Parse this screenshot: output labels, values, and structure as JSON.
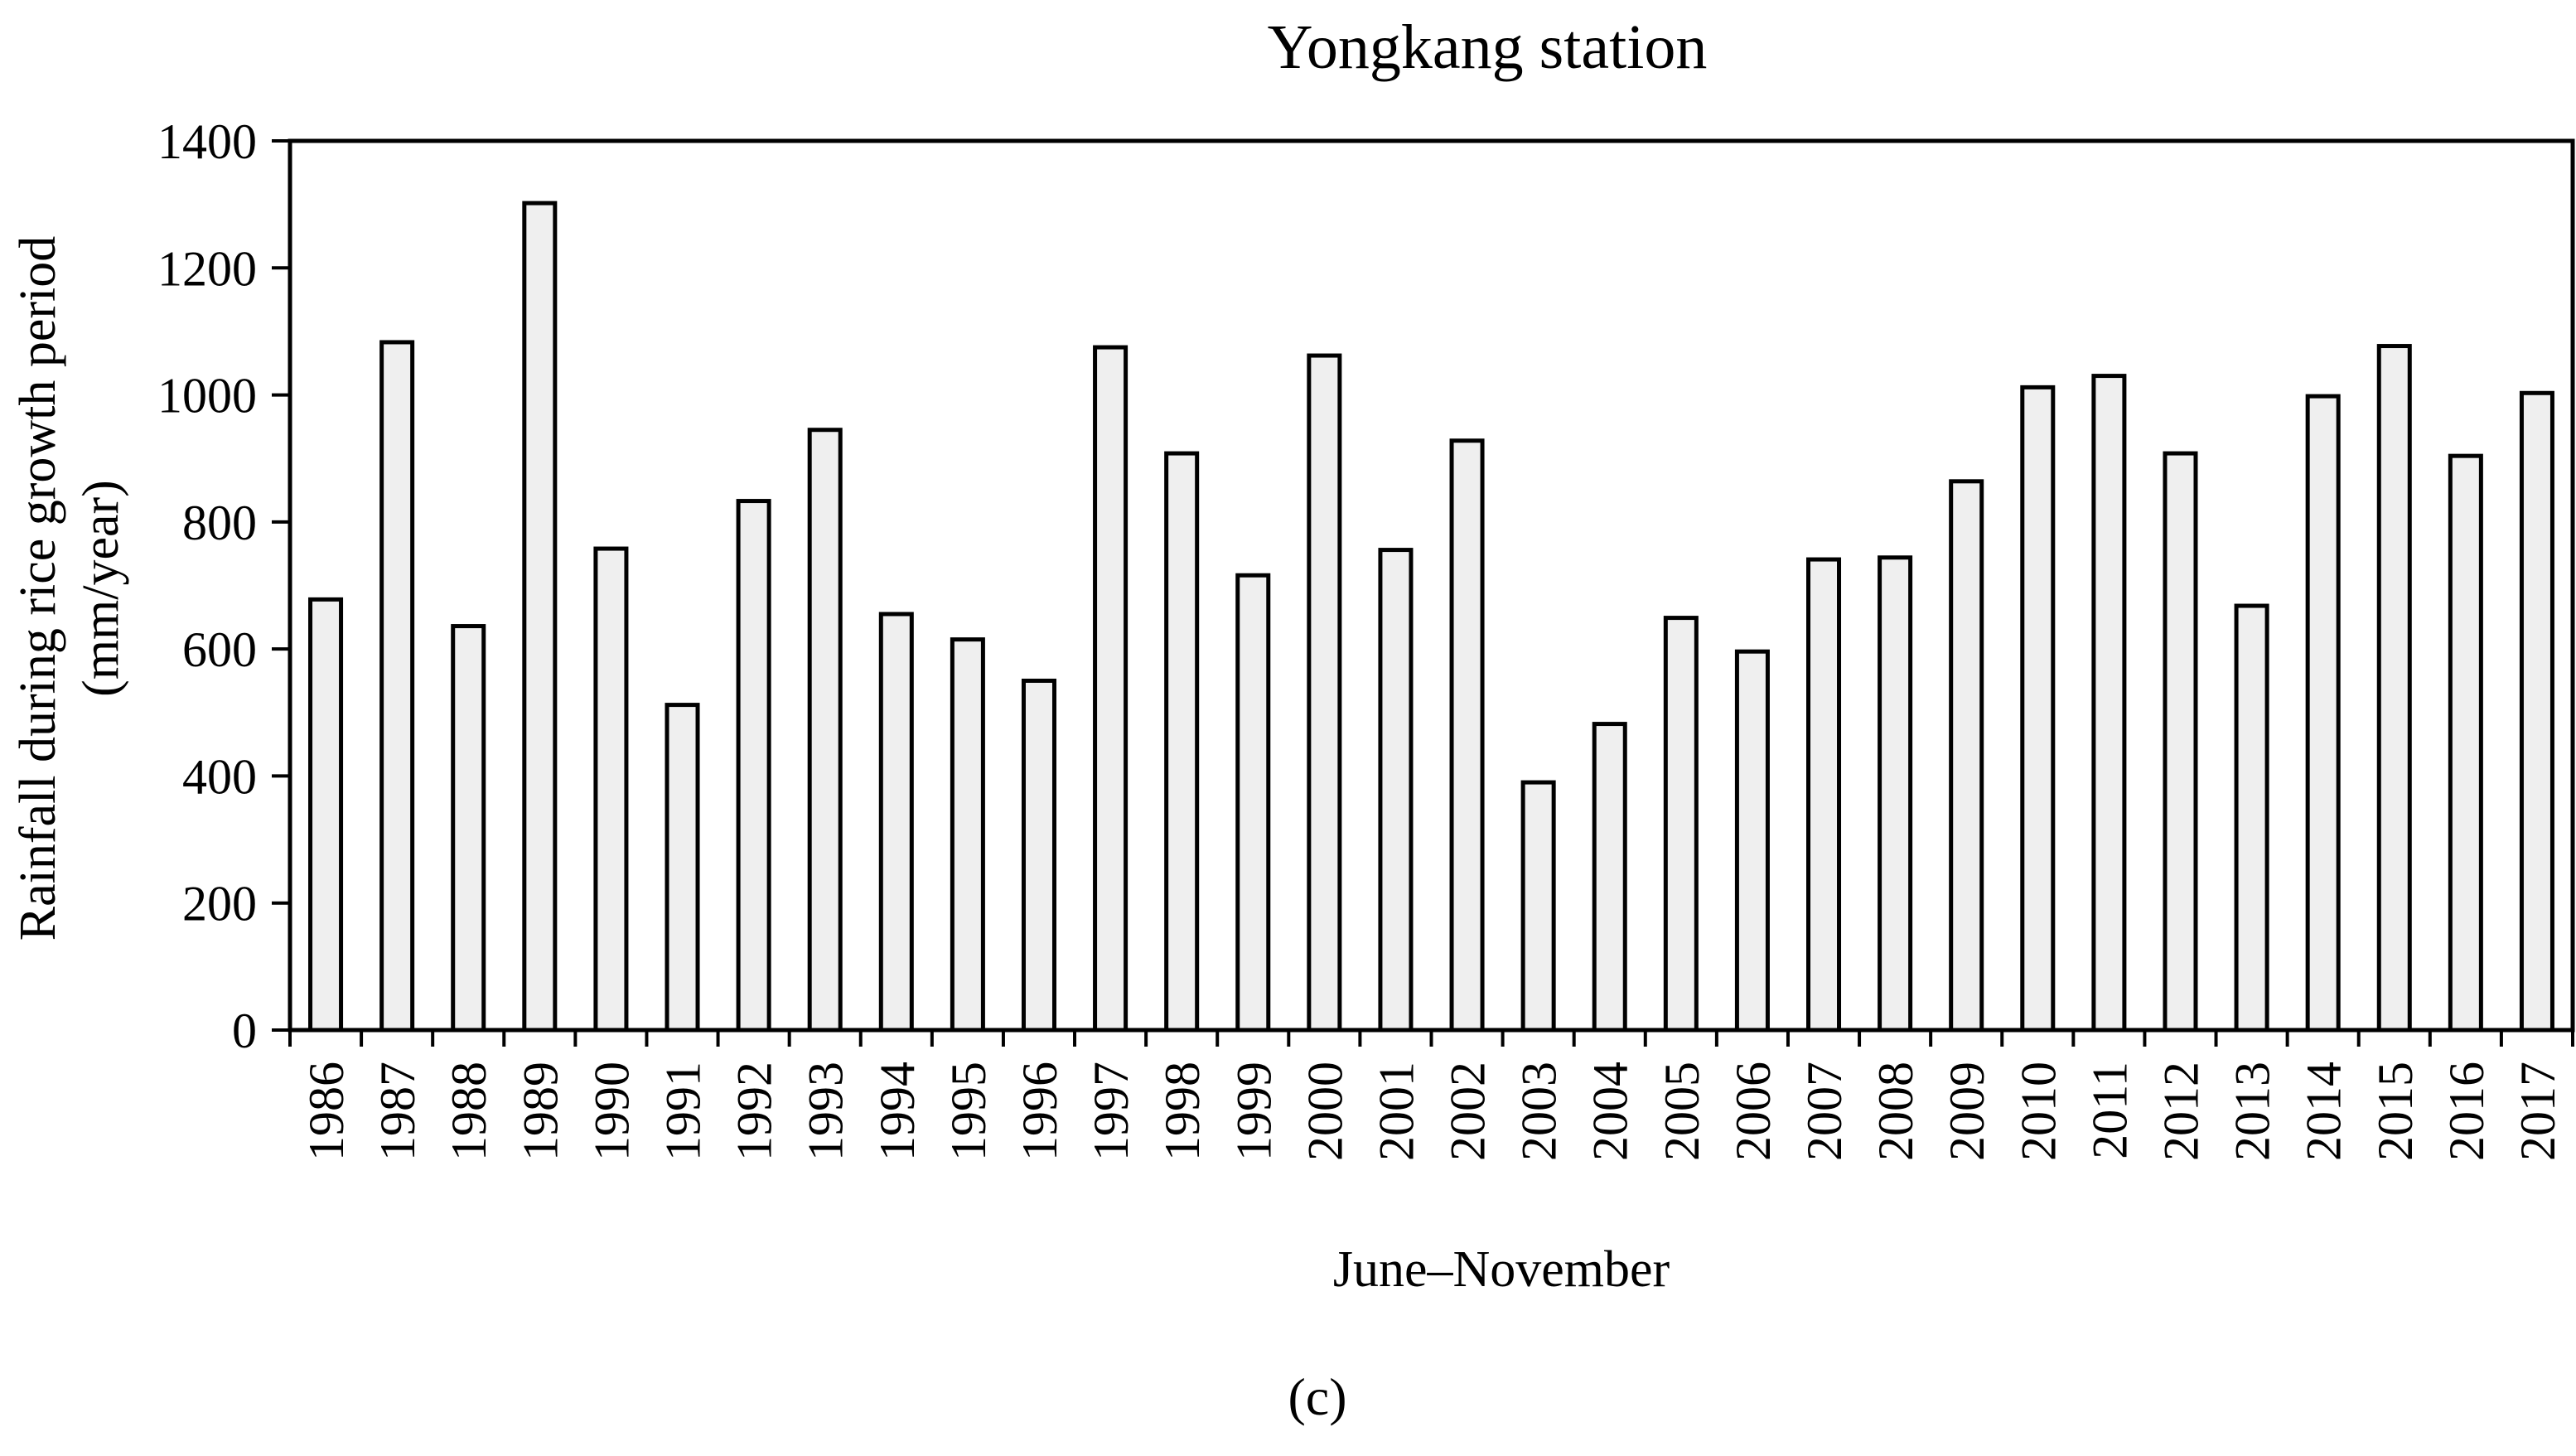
{
  "chart_data": {
    "type": "bar",
    "title": "Yongkang station",
    "xlabel": "June–November",
    "ylabel_lines": [
      "Rainfall during rice growth period",
      "(mm/year)"
    ],
    "panel_label": "(c)",
    "ylim": [
      0,
      1400
    ],
    "yticks": [
      0,
      200,
      400,
      600,
      800,
      1000,
      1200,
      1400
    ],
    "grid": false,
    "legend": "none",
    "bar_fill": "#efefef",
    "bar_stroke": "#000000",
    "categories": [
      "1986",
      "1987",
      "1988",
      "1989",
      "1990",
      "1991",
      "1992",
      "1993",
      "1994",
      "1995",
      "1996",
      "1997",
      "1998",
      "1999",
      "2000",
      "2001",
      "2002",
      "2003",
      "2004",
      "2005",
      "2006",
      "2007",
      "2008",
      "2009",
      "2010",
      "2011",
      "2012",
      "2013",
      "2014",
      "2015",
      "2016",
      "2017"
    ],
    "values": [
      678,
      1083,
      636,
      1302,
      758,
      512,
      833,
      945,
      655,
      615,
      550,
      1075,
      908,
      716,
      1062,
      756,
      928,
      390,
      482,
      649,
      596,
      741,
      744,
      864,
      1012,
      1030,
      908,
      668,
      998,
      1077,
      904,
      1003
    ]
  }
}
